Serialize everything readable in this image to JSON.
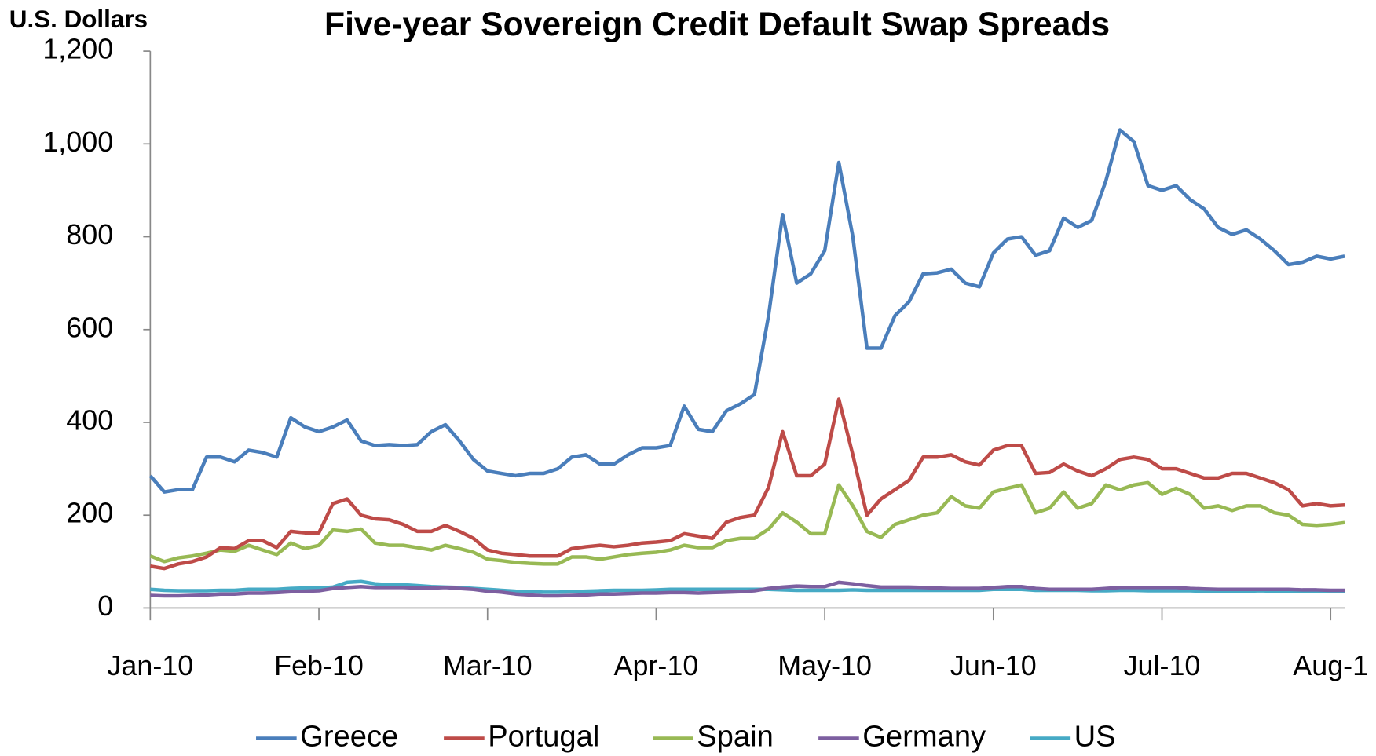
{
  "chart_data": {
    "type": "line",
    "title": "Five-year Sovereign Credit Default Swap Spreads",
    "y_label": "U.S. Dollars",
    "categories": [
      "Jan-10",
      null,
      null,
      null,
      null,
      null,
      null,
      null,
      null,
      null,
      null,
      null,
      "Feb-10",
      null,
      null,
      null,
      null,
      null,
      null,
      null,
      null,
      null,
      null,
      null,
      "Mar-10",
      null,
      null,
      null,
      null,
      null,
      null,
      null,
      null,
      null,
      null,
      null,
      "Apr-10",
      null,
      null,
      null,
      null,
      null,
      null,
      null,
      null,
      null,
      null,
      null,
      "May-10",
      null,
      null,
      null,
      null,
      null,
      null,
      null,
      null,
      null,
      null,
      null,
      "Jun-10",
      null,
      null,
      null,
      null,
      null,
      null,
      null,
      null,
      null,
      null,
      null,
      "Jul-10",
      null,
      null,
      null,
      null,
      null,
      null,
      null,
      null,
      null,
      null,
      null,
      "Aug-1",
      null
    ],
    "series": [
      {
        "name": "Greece",
        "color": "#4a7ebb",
        "values": [
          285,
          250,
          255,
          255,
          325,
          325,
          315,
          340,
          335,
          325,
          410,
          390,
          380,
          390,
          405,
          360,
          350,
          352,
          350,
          352,
          380,
          395,
          360,
          320,
          295,
          290,
          285,
          290,
          290,
          300,
          325,
          330,
          310,
          310,
          330,
          345,
          345,
          350,
          435,
          385,
          380,
          425,
          440,
          460,
          630,
          848,
          700,
          720,
          770,
          960,
          800,
          560,
          560,
          630,
          660,
          720,
          722,
          730,
          700,
          692,
          765,
          795,
          800,
          760,
          770,
          840,
          820,
          835,
          920,
          1030,
          1005,
          910,
          900,
          910,
          880,
          860,
          820,
          805,
          815,
          795,
          770,
          740,
          745,
          758,
          752,
          758
        ]
      },
      {
        "name": "Portugal",
        "color": "#be4b48",
        "values": [
          90,
          85,
          95,
          100,
          110,
          130,
          128,
          145,
          145,
          130,
          165,
          162,
          162,
          225,
          235,
          200,
          192,
          190,
          180,
          165,
          165,
          178,
          165,
          150,
          125,
          118,
          115,
          112,
          112,
          112,
          128,
          132,
          135,
          132,
          135,
          140,
          142,
          145,
          160,
          155,
          150,
          185,
          195,
          200,
          260,
          380,
          285,
          285,
          310,
          450,
          330,
          200,
          235,
          255,
          275,
          325,
          325,
          330,
          315,
          308,
          340,
          350,
          350,
          290,
          292,
          310,
          295,
          285,
          300,
          320,
          325,
          320,
          300,
          300,
          290,
          280,
          280,
          290,
          290,
          280,
          270,
          255,
          220,
          225,
          220,
          222
        ]
      },
      {
        "name": "Spain",
        "color": "#98b954",
        "values": [
          112,
          100,
          108,
          112,
          118,
          125,
          122,
          135,
          125,
          115,
          140,
          128,
          135,
          168,
          165,
          170,
          140,
          135,
          135,
          130,
          125,
          135,
          128,
          120,
          105,
          102,
          98,
          96,
          95,
          95,
          110,
          110,
          105,
          110,
          115,
          118,
          120,
          125,
          135,
          130,
          130,
          145,
          150,
          150,
          170,
          205,
          185,
          160,
          160,
          265,
          220,
          165,
          152,
          180,
          190,
          200,
          205,
          240,
          220,
          215,
          250,
          258,
          265,
          205,
          215,
          250,
          215,
          225,
          265,
          255,
          265,
          270,
          245,
          258,
          245,
          215,
          220,
          210,
          220,
          220,
          205,
          200,
          180,
          178,
          180,
          184
        ]
      },
      {
        "name": "Germany",
        "color": "#7d5fa0",
        "values": [
          27,
          26,
          26,
          27,
          28,
          30,
          30,
          32,
          32,
          33,
          35,
          36,
          37,
          42,
          44,
          46,
          44,
          44,
          44,
          43,
          43,
          44,
          42,
          40,
          36,
          34,
          30,
          28,
          26,
          26,
          27,
          28,
          30,
          30,
          31,
          32,
          32,
          33,
          33,
          32,
          33,
          34,
          35,
          37,
          42,
          45,
          47,
          46,
          46,
          55,
          52,
          48,
          45,
          45,
          45,
          44,
          43,
          42,
          42,
          42,
          44,
          46,
          46,
          42,
          40,
          40,
          40,
          40,
          42,
          44,
          44,
          44,
          44,
          44,
          42,
          41,
          40,
          40,
          40,
          40,
          40,
          40,
          39,
          39,
          38,
          38
        ]
      },
      {
        "name": "US",
        "color": "#46aac5",
        "values": [
          40,
          38,
          37,
          37,
          37,
          38,
          38,
          40,
          40,
          40,
          42,
          43,
          43,
          45,
          55,
          57,
          52,
          50,
          50,
          48,
          46,
          45,
          44,
          42,
          40,
          38,
          36,
          35,
          34,
          34,
          35,
          36,
          37,
          38,
          38,
          38,
          39,
          40,
          40,
          40,
          40,
          40,
          40,
          40,
          40,
          39,
          38,
          38,
          38,
          38,
          39,
          38,
          38,
          38,
          38,
          38,
          38,
          38,
          38,
          38,
          40,
          40,
          40,
          38,
          38,
          38,
          38,
          37,
          37,
          38,
          38,
          37,
          37,
          37,
          37,
          36,
          36,
          36,
          36,
          37,
          36,
          36,
          35,
          35,
          35,
          35
        ]
      }
    ],
    "ylim": [
      0,
      1200
    ],
    "yticks": [
      0,
      200,
      400,
      600,
      800,
      {
        "value": 1000,
        "label": "1,000"
      },
      {
        "value": 1200,
        "label": "1,200"
      }
    ],
    "grid": false,
    "legend": "bottom"
  }
}
